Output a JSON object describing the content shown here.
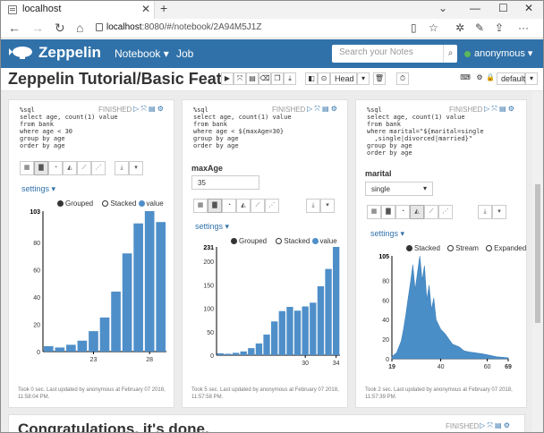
{
  "browser": {
    "tab_title": "localhost",
    "url_host": "localhost",
    "url_rest": ":8080/#/notebook/2A94M5J1Z"
  },
  "navbar": {
    "brand": "Zeppelin",
    "notebook_label": "Notebook",
    "job_label": "Job",
    "search_placeholder": "Search your Notes",
    "user": "anonymous"
  },
  "notebook": {
    "title": "Zeppelin Tutorial/Basic Featu...",
    "head_select": "Head",
    "default_select": "default"
  },
  "paragraphs": [
    {
      "status": "FINISHED",
      "code": [
        "%sql",
        "select age, count(1) value",
        "from bank",
        "where age < 30",
        "group by age",
        "order by age"
      ],
      "settings_label": "settings",
      "legend": [
        "Grouped",
        "Stacked",
        "value"
      ],
      "footer": [
        "Took 0 sec. Last updated by anonymous at February 07 2018,",
        "11:58:04 PM."
      ]
    },
    {
      "status": "FINISHED",
      "code": [
        "%sql",
        "select age, count(1) value",
        "from bank",
        "where age < ${maxAge=30}",
        "group by age",
        "order by age"
      ],
      "form_label": "maxAge",
      "form_value": "35",
      "settings_label": "settings",
      "legend": [
        "Grouped",
        "Stacked",
        "value"
      ],
      "footer": [
        "Took 5 sec. Last updated by anonymous at February 07 2018,",
        "11:57:58 PM."
      ]
    },
    {
      "status": "FINISHED",
      "code": [
        "%sql",
        "select age, count(1) value",
        "from bank",
        "where marital=\"${marital=single",
        "  ,single|divorced|married}\"",
        "group by age",
        "order by age"
      ],
      "form_label": "marital",
      "form_value": "single",
      "settings_label": "settings",
      "legend": [
        "Stacked",
        "Stream",
        "Expanded"
      ],
      "footer": [
        "Took 2 sec. Last updated by anonymous at February 07 2018,",
        "11:57:39 PM."
      ]
    }
  ],
  "last_paragraph": {
    "title": "Congratulations, it's done.",
    "status": "FINISHED"
  },
  "colors": {
    "navbar": "#3071a9",
    "bar": "#4f8fc9",
    "area": "#4a8ec8"
  },
  "chart_data": [
    {
      "type": "bar",
      "categories": [
        19,
        20,
        21,
        22,
        23,
        24,
        25,
        26,
        27,
        28,
        29
      ],
      "values": [
        4,
        3,
        5,
        8,
        15,
        25,
        44,
        72,
        94,
        103,
        95
      ],
      "tick_labels": [
        "23",
        "28"
      ],
      "ymax_label": "103",
      "y_ticks": [
        0,
        20,
        40,
        60,
        80
      ],
      "ylim": [
        0,
        103
      ]
    },
    {
      "type": "bar",
      "categories": [
        19,
        20,
        21,
        22,
        23,
        24,
        25,
        26,
        27,
        28,
        29,
        30,
        31,
        32,
        33,
        34
      ],
      "values": [
        4,
        3,
        5,
        8,
        15,
        25,
        44,
        72,
        94,
        103,
        95,
        104,
        112,
        147,
        184,
        231
      ],
      "tick_labels": [
        "30",
        "34"
      ],
      "ymax_label": "231",
      "y_ticks": [
        0,
        50,
        100,
        150,
        200
      ],
      "ylim": [
        0,
        231
      ]
    },
    {
      "type": "area",
      "x": [
        19,
        21,
        23,
        24,
        25,
        26,
        27,
        28,
        29,
        30,
        31,
        32,
        33,
        34,
        35,
        36,
        37,
        38,
        40,
        42,
        45,
        48,
        50,
        52,
        55,
        58,
        60,
        64,
        69
      ],
      "values": [
        2,
        6,
        18,
        30,
        45,
        62,
        78,
        96,
        70,
        88,
        105,
        80,
        95,
        60,
        75,
        50,
        62,
        40,
        30,
        25,
        15,
        12,
        8,
        7,
        6,
        5,
        4,
        2,
        1
      ],
      "tick_labels": [
        "19",
        "40",
        "60",
        "69"
      ],
      "ymax_label": "105",
      "y_ticks": [
        0,
        20,
        40,
        60,
        80
      ],
      "ylim": [
        0,
        105
      ]
    }
  ]
}
